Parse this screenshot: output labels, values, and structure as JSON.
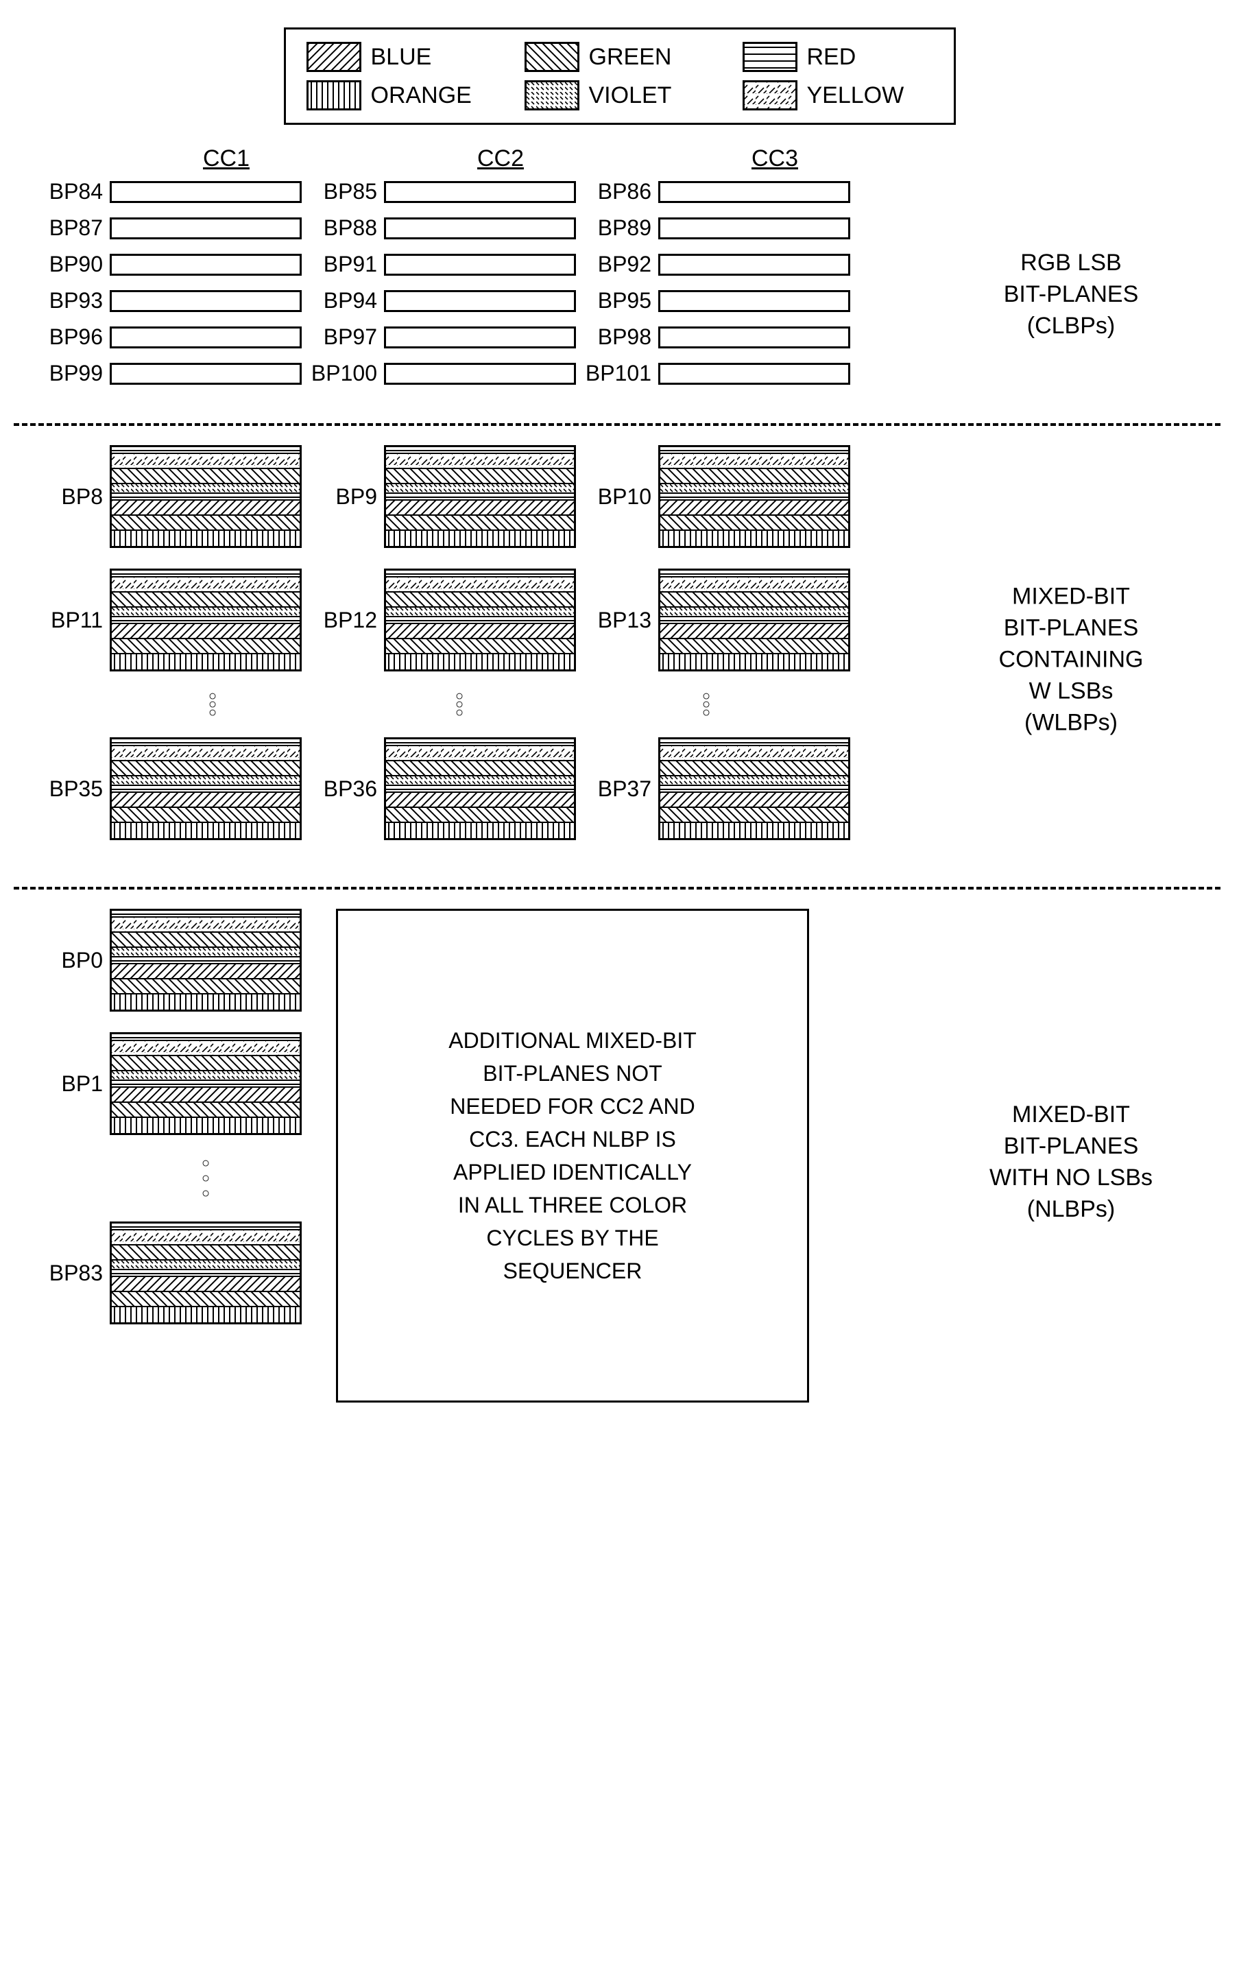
{
  "legend": [
    {
      "name": "BLUE",
      "pattern": "pat-blue"
    },
    {
      "name": "GREEN",
      "pattern": "pat-green"
    },
    {
      "name": "RED",
      "pattern": "pat-red"
    },
    {
      "name": "ORANGE",
      "pattern": "pat-orange"
    },
    {
      "name": "VIOLET",
      "pattern": "pat-violet"
    },
    {
      "name": "YELLOW",
      "pattern": "pat-yellow"
    }
  ],
  "columns": [
    "CC1",
    "CC2",
    "CC3"
  ],
  "section1": {
    "label": "RGB LSB\nBIT-PLANES\n(CLBPs)",
    "rows": [
      {
        "labels": [
          "BP84",
          "BP85",
          "BP86"
        ],
        "pattern": "pat-red"
      },
      {
        "labels": [
          "BP87",
          "BP88",
          "BP89"
        ],
        "pattern": "pat-red"
      },
      {
        "labels": [
          "BP90",
          "BP91",
          "BP92"
        ],
        "pattern": "pat-green"
      },
      {
        "labels": [
          "BP93",
          "BP94",
          "BP95"
        ],
        "pattern": "pat-green"
      },
      {
        "labels": [
          "BP96",
          "BP97",
          "BP98"
        ],
        "pattern": "pat-blue"
      },
      {
        "labels": [
          "BP99",
          "BP100",
          "BP101"
        ],
        "pattern": "pat-blue"
      }
    ]
  },
  "mixed_stack_stripes": [
    {
      "pattern": "pat-red",
      "height": "thinner"
    },
    {
      "pattern": "pat-yellow",
      "height": ""
    },
    {
      "pattern": "pat-green",
      "height": ""
    },
    {
      "pattern": "pat-violet",
      "height": "thin"
    },
    {
      "pattern": "pat-red",
      "height": "thinner"
    },
    {
      "pattern": "pat-blue",
      "height": ""
    },
    {
      "pattern": "pat-green",
      "height": ""
    },
    {
      "pattern": "pat-orange",
      "height": ""
    }
  ],
  "section2": {
    "label": "MIXED-BIT\nBIT-PLANES\nCONTAINING\nW LSBs\n(WLBPs)",
    "rows": [
      {
        "labels": [
          "BP8",
          "BP9",
          "BP10"
        ]
      },
      {
        "labels": [
          "BP11",
          "BP12",
          "BP13"
        ]
      }
    ],
    "last_row": {
      "labels": [
        "BP35",
        "BP36",
        "BP37"
      ]
    }
  },
  "section3": {
    "label": "MIXED-BIT\nBIT-PLANES\nWITH NO LSBs\n(NLBPs)",
    "callout": "ADDITIONAL MIXED-BIT\nBIT-PLANES NOT\nNEEDED FOR CC2 AND\nCC3. EACH NLBP IS\nAPPLIED IDENTICALLY\nIN ALL THREE COLOR\nCYCLES BY THE\nSEQUENCER",
    "left_rows": [
      "BP0",
      "BP1"
    ],
    "left_last": "BP83"
  },
  "style": {
    "font_family": "Arial, Helvetica, sans-serif",
    "border_color": "#000000",
    "background_color": "#ffffff",
    "font_size_label": 34,
    "font_size_bp": 32
  }
}
